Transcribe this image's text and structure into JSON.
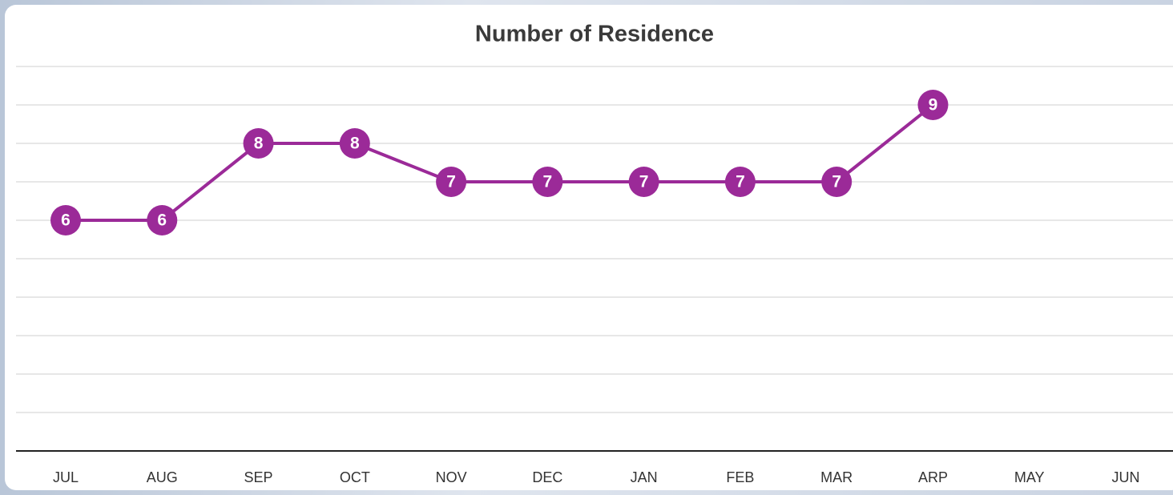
{
  "chart_data": {
    "type": "line",
    "title": "Number of Residence",
    "categories": [
      "JUL",
      "AUG",
      "SEP",
      "OCT",
      "NOV",
      "DEC",
      "JAN",
      "FEB",
      "MAR",
      "ARP",
      "MAY",
      "JUN"
    ],
    "series": [
      {
        "name": "Number of Residence",
        "color": "#9b2a98",
        "values": [
          6,
          6,
          8,
          8,
          7,
          7,
          7,
          7,
          7,
          9,
          null,
          null
        ]
      }
    ],
    "ylim": [
      0,
      10
    ],
    "yticks": [
      0,
      1,
      2,
      3,
      4,
      5,
      6,
      7,
      8,
      9,
      10
    ],
    "grid": true
  }
}
